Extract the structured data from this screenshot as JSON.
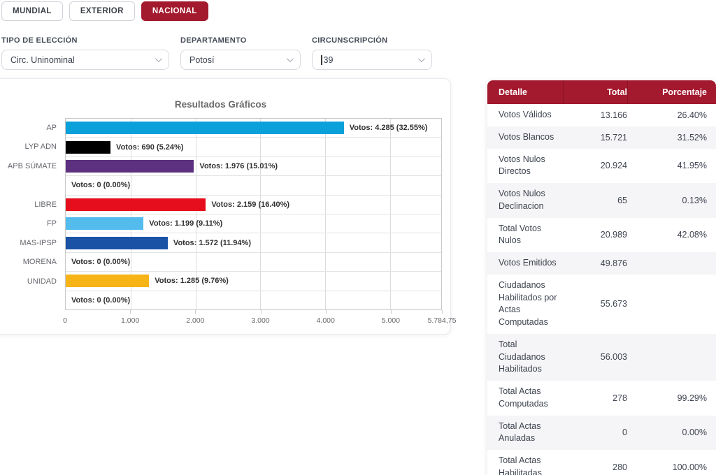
{
  "tabs": [
    {
      "label": "MUNDIAL",
      "active": false
    },
    {
      "label": "EXTERIOR",
      "active": false
    },
    {
      "label": "NACIONAL",
      "active": true
    }
  ],
  "filters": [
    {
      "label": "TIPO DE ELECCIÓN",
      "value": "Circ. Uninominal"
    },
    {
      "label": "DEPARTAMENTO",
      "value": "Potosí"
    },
    {
      "label": "CIRCUNSCRIPCIÓN",
      "value": "39"
    }
  ],
  "chart_data": {
    "type": "bar",
    "orientation": "horizontal",
    "title": "Resultados Gráficos",
    "xlim": [
      0,
      5784.75
    ],
    "grid": true,
    "bars": [
      {
        "party": "AP",
        "votes": 4285,
        "label": "Votos: 4.285 (32.55%)",
        "color": "#0aa0da"
      },
      {
        "party": "LYP ADN",
        "votes": 690,
        "label": "Votos: 690 (5.24%)",
        "color": "#000000"
      },
      {
        "party": "APB SÚMATE",
        "votes": 1976,
        "label": "Votos: 1.976 (15.01%)",
        "color": "#5e3180"
      },
      {
        "party": "",
        "votes": 0,
        "label": "Votos: 0 (0.00%)",
        "color": null
      },
      {
        "party": "LIBRE",
        "votes": 2159,
        "label": "Votos: 2.159 (16.40%)",
        "color": "#e60e1c"
      },
      {
        "party": "FP",
        "votes": 1199,
        "label": "Votos: 1.199 (9.11%)",
        "color": "#54bcec"
      },
      {
        "party": "MAS-IPSP",
        "votes": 1572,
        "label": "Votos: 1.572 (11.94%)",
        "color": "#1a53a6"
      },
      {
        "party": "MORENA",
        "votes": 0,
        "label": "Votos: 0 (0.00%)",
        "color": null
      },
      {
        "party": "UNIDAD",
        "votes": 1285,
        "label": "Votos: 1.285 (9.76%)",
        "color": "#f7b416"
      },
      {
        "party": "",
        "votes": 0,
        "label": "Votos: 0 (0.00%)",
        "color": null
      }
    ],
    "xticks": [
      {
        "label": "0",
        "value": 0
      },
      {
        "label": "1.000",
        "value": 1000
      },
      {
        "label": "2.000",
        "value": 2000
      },
      {
        "label": "3.000",
        "value": 3000
      },
      {
        "label": "4.000",
        "value": 4000
      },
      {
        "label": "5.000",
        "value": 5000
      },
      {
        "label": "5.784,75",
        "value": 5784.75
      }
    ]
  },
  "table": {
    "headers": [
      "Detalle",
      "Total",
      "Porcentaje"
    ],
    "rows": [
      [
        "Votos Válidos",
        "13.166",
        "26.40%"
      ],
      [
        "Votos Blancos",
        "15.721",
        "31.52%"
      ],
      [
        "Votos Nulos Directos",
        "20.924",
        "41.95%"
      ],
      [
        "Votos Nulos Declinacion",
        "65",
        "0.13%"
      ],
      [
        "Total Votos Nulos",
        "20.989",
        "42.08%"
      ],
      [
        "Votos Emitidos",
        "49.876",
        ""
      ],
      [
        "Ciudadanos Habilitados por Actas Computadas",
        "55.673",
        ""
      ],
      [
        "Total Ciudadanos Habilitados",
        "56.003",
        ""
      ],
      [
        "Total Actas Computadas",
        "278",
        "99.29%"
      ],
      [
        "Total Actas Anuladas",
        "0",
        "0.00%"
      ],
      [
        "Total Actas Habilitadas",
        "280",
        "100.00%"
      ]
    ]
  },
  "colors": {
    "accent": "#a3192e",
    "row_alt": "#f5f4f6",
    "grid": "#dcdcdc"
  }
}
